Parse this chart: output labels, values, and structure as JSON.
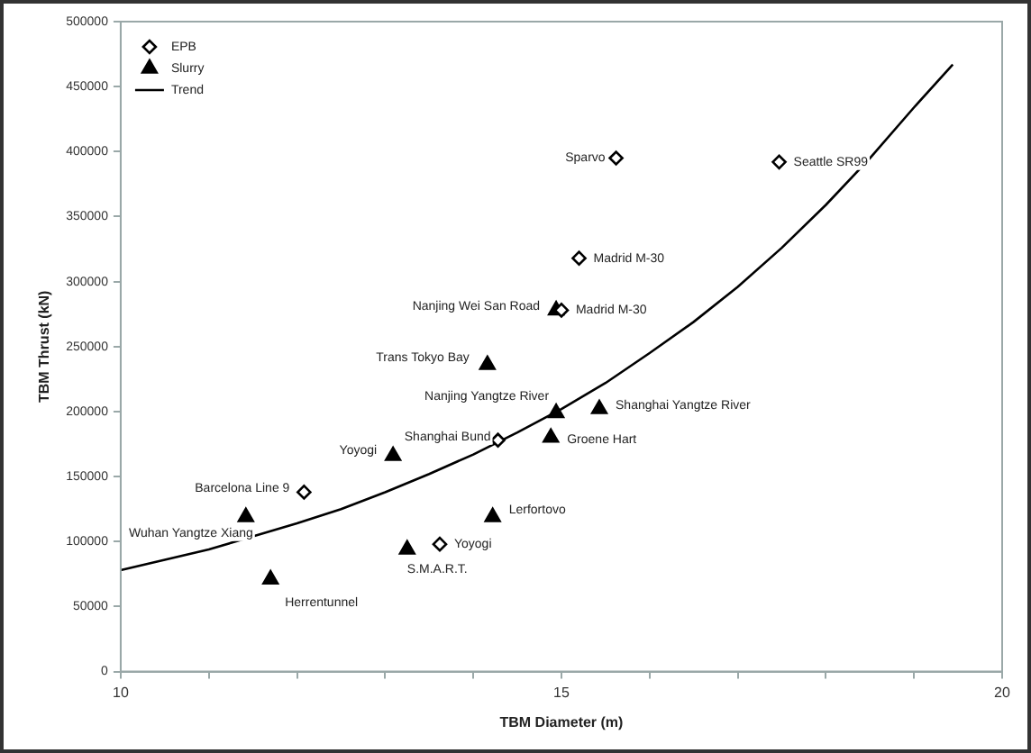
{
  "chart_data": {
    "type": "scatter",
    "xlabel": "TBM Diameter (m)",
    "ylabel": "TBM Thrust (kN)",
    "xlim": [
      10,
      20
    ],
    "xticks": [
      10,
      {
        "value": 11,
        "label": null
      },
      {
        "value": 12,
        "label": null
      },
      {
        "value": 13,
        "label": null
      },
      {
        "value": 14,
        "label": null
      },
      15,
      {
        "value": 16,
        "label": null
      },
      {
        "value": 17,
        "label": null
      },
      {
        "value": 18,
        "label": null
      },
      {
        "value": 19,
        "label": null
      },
      20
    ],
    "ylim": [
      0,
      500000
    ],
    "yticks": [
      0,
      50000,
      100000,
      150000,
      200000,
      250000,
      300000,
      350000,
      400000,
      450000,
      500000
    ],
    "grid": false,
    "legend": "top left",
    "series": [
      {
        "name": "EPB",
        "marker": "diamond",
        "color": "#000000",
        "x": [
          15.62,
          17.47,
          15.2,
          15.0,
          14.28,
          12.08,
          13.62
        ],
        "values": [
          395000,
          392000,
          318000,
          278000,
          178000,
          138000,
          98000
        ]
      },
      {
        "name": "Slurry",
        "marker": "triangle",
        "color": "#000000",
        "x": [
          14.16,
          14.94,
          14.94,
          15.43,
          14.88,
          13.09,
          11.42,
          14.22,
          13.25,
          11.7
        ],
        "values": [
          236000,
          278000,
          199000,
          202000,
          180000,
          166000,
          119000,
          119000,
          94000,
          71000
        ]
      },
      {
        "name": "Trend",
        "type": "line",
        "marker": "none",
        "line_style": "solid",
        "color": "#000000",
        "x": [
          10,
          10.5,
          11,
          11.5,
          12,
          12.5,
          13,
          13.5,
          14,
          14.5,
          15,
          15.5,
          16,
          16.5,
          17,
          17.5,
          18,
          18.5,
          19,
          19.44
        ],
        "values": [
          78000,
          86000,
          94000,
          104000,
          114000,
          125000,
          138000,
          152000,
          167000,
          184000,
          202000,
          222000,
          245000,
          269000,
          296000,
          326000,
          359000,
          395000,
          434000,
          467000
        ]
      }
    ],
    "annotations": [
      {
        "text": "Sparvo",
        "x": 15.62,
        "y": 395000
      },
      {
        "text": "Seattle SR99",
        "x": 17.47,
        "y": 392000
      },
      {
        "text": "Madrid M-30",
        "x": 15.2,
        "y": 318000
      },
      {
        "text": "Madrid M-30",
        "x": 15.0,
        "y": 278000
      },
      {
        "text": "Shanghai Bund",
        "x": 14.28,
        "y": 178000
      },
      {
        "text": "Barcelona Line 9",
        "x": 12.08,
        "y": 138000
      },
      {
        "text": "Yoyogi",
        "x": 13.62,
        "y": 98000
      },
      {
        "text": "Trans Tokyo Bay",
        "x": 14.16,
        "y": 236000
      },
      {
        "text": "Nanjing Wei San Road",
        "x": 14.94,
        "y": 278000
      },
      {
        "text": "Nanjing Yangtze River",
        "x": 14.94,
        "y": 199000
      },
      {
        "text": "Shanghai Yangtze River",
        "x": 15.43,
        "y": 202000
      },
      {
        "text": "Groene Hart",
        "x": 14.88,
        "y": 180000
      },
      {
        "text": "Yoyogi",
        "x": 13.09,
        "y": 166000
      },
      {
        "text": "Wuhan Yangtze Xiang",
        "x": 11.42,
        "y": 119000
      },
      {
        "text": "Lerfortovo",
        "x": 14.22,
        "y": 119000
      },
      {
        "text": "S.M.A.R.T.",
        "x": 13.25,
        "y": 94000
      },
      {
        "text": "Herrentunnel",
        "x": 11.7,
        "y": 71000
      }
    ]
  }
}
